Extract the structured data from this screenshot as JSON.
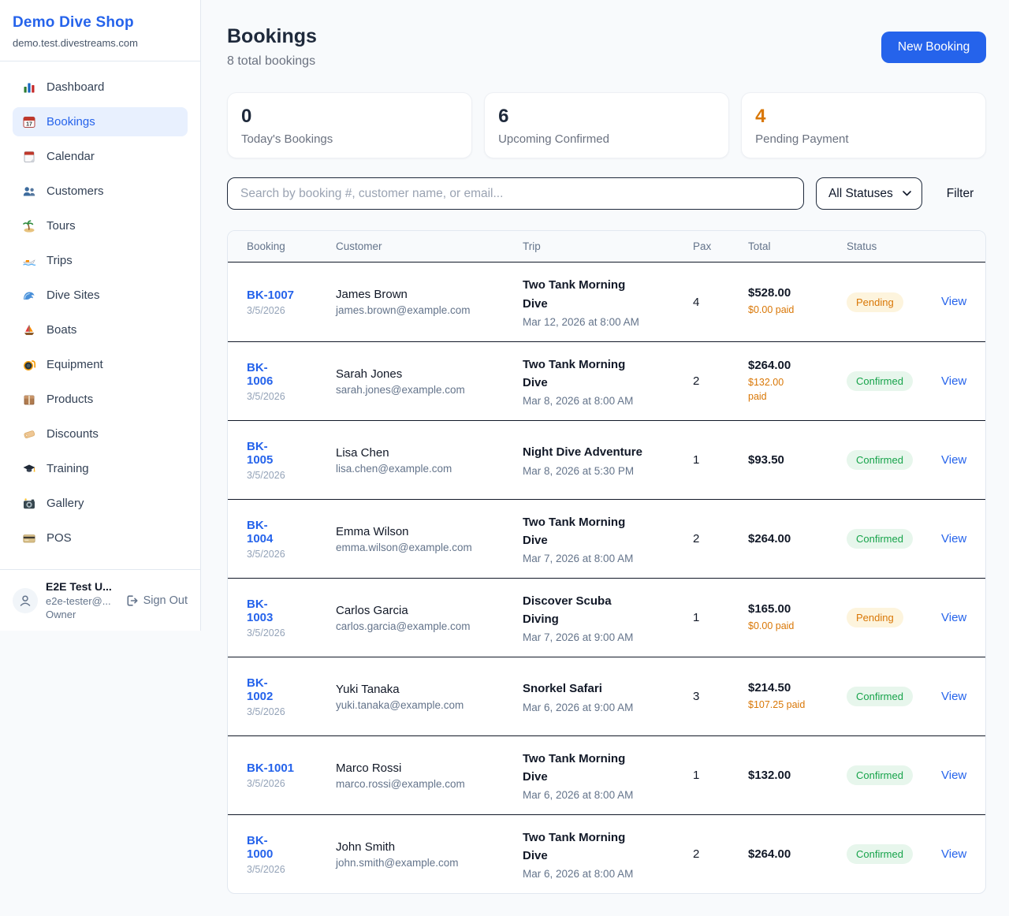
{
  "colors": {
    "accent_blue": "#2563eb",
    "orange": "#d97706",
    "green": "#16a34a",
    "pending_badge_bg": "#fdf4dd",
    "confirmed_badge_bg": "#e7f6ec",
    "page_bg": "#f8fafc"
  },
  "sidebar": {
    "title": "Demo Dive Shop",
    "subdomain": "demo.test.divestreams.com",
    "items": [
      {
        "label": "Dashboard",
        "icon": "bar-chart",
        "active": false
      },
      {
        "label": "Bookings",
        "icon": "calendar",
        "active": true
      },
      {
        "label": "Calendar",
        "icon": "tear-calendar",
        "active": false
      },
      {
        "label": "Customers",
        "icon": "people",
        "active": false
      },
      {
        "label": "Tours",
        "icon": "island",
        "active": false
      },
      {
        "label": "Trips",
        "icon": "speedboat",
        "active": false
      },
      {
        "label": "Dive Sites",
        "icon": "wave",
        "active": false
      },
      {
        "label": "Boats",
        "icon": "sailboat",
        "active": false
      },
      {
        "label": "Equipment",
        "icon": "dive-mask",
        "active": false
      },
      {
        "label": "Products",
        "icon": "package",
        "active": false
      },
      {
        "label": "Discounts",
        "icon": "tag",
        "active": false
      },
      {
        "label": "Training",
        "icon": "grad-cap",
        "active": false
      },
      {
        "label": "Gallery",
        "icon": "camera",
        "active": false
      },
      {
        "label": "POS",
        "icon": "credit-card",
        "active": false
      }
    ],
    "user": {
      "name": "E2E Test U...",
      "email": "e2e-tester@...",
      "role": "Owner",
      "sign_out_label": "Sign Out"
    }
  },
  "header": {
    "title": "Bookings",
    "subtitle": "8 total bookings",
    "new_booking_label": "New Booking"
  },
  "stats": [
    {
      "value": "0",
      "label": "Today's Bookings",
      "accent": ""
    },
    {
      "value": "6",
      "label": "Upcoming Confirmed",
      "accent": ""
    },
    {
      "value": "4",
      "label": "Pending Payment",
      "accent": "orange"
    }
  ],
  "filters": {
    "search_placeholder": "Search by booking #, customer name, or email...",
    "status_selected": "All Statuses",
    "filter_label": "Filter"
  },
  "table": {
    "columns": [
      "Booking",
      "Customer",
      "Trip",
      "Pax",
      "Total",
      "Status"
    ],
    "view_label": "View",
    "rows": [
      {
        "id": "BK-1007",
        "date": "3/5/2026",
        "name": "James Brown",
        "email": "james.brown@example.com",
        "trip": "Two Tank Morning\nDive",
        "trip_time": "Mar 12, 2026 at 8:00 AM",
        "pax": "4",
        "total": "$528.00",
        "paid": "$0.00 paid",
        "status": "Pending"
      },
      {
        "id": "BK-\n1006",
        "date": "3/5/2026",
        "name": "Sarah Jones",
        "email": "sarah.jones@example.com",
        "trip": "Two Tank Morning\nDive",
        "trip_time": "Mar 8, 2026 at 8:00 AM",
        "pax": "2",
        "total": "$264.00",
        "paid": "$132.00\npaid",
        "status": "Confirmed"
      },
      {
        "id": "BK-\n1005",
        "date": "3/5/2026",
        "name": "Lisa Chen",
        "email": "lisa.chen@example.com",
        "trip": "Night Dive Adventure",
        "trip_time": "Mar 8, 2026 at 5:30 PM",
        "pax": "1",
        "total": "$93.50",
        "paid": "",
        "status": "Confirmed"
      },
      {
        "id": "BK-\n1004",
        "date": "3/5/2026",
        "name": "Emma Wilson",
        "email": "emma.wilson@example.com",
        "trip": "Two Tank Morning\nDive",
        "trip_time": "Mar 7, 2026 at 8:00 AM",
        "pax": "2",
        "total": "$264.00",
        "paid": "",
        "status": "Confirmed"
      },
      {
        "id": "BK-\n1003",
        "date": "3/5/2026",
        "name": "Carlos Garcia",
        "email": "carlos.garcia@example.com",
        "trip": "Discover Scuba\nDiving",
        "trip_time": "Mar 7, 2026 at 9:00 AM",
        "pax": "1",
        "total": "$165.00",
        "paid": "$0.00 paid",
        "status": "Pending"
      },
      {
        "id": "BK-\n1002",
        "date": "3/5/2026",
        "name": "Yuki Tanaka",
        "email": "yuki.tanaka@example.com",
        "trip": "Snorkel Safari",
        "trip_time": "Mar 6, 2026 at 9:00 AM",
        "pax": "3",
        "total": "$214.50",
        "paid": "$107.25 paid",
        "status": "Confirmed"
      },
      {
        "id": "BK-1001",
        "date": "3/5/2026",
        "name": "Marco Rossi",
        "email": "marco.rossi@example.com",
        "trip": "Two Tank Morning\nDive",
        "trip_time": "Mar 6, 2026 at 8:00 AM",
        "pax": "1",
        "total": "$132.00",
        "paid": "",
        "status": "Confirmed"
      },
      {
        "id": "BK-\n1000",
        "date": "3/5/2026",
        "name": "John Smith",
        "email": "john.smith@example.com",
        "trip": "Two Tank Morning\nDive",
        "trip_time": "Mar 6, 2026 at 8:00 AM",
        "pax": "2",
        "total": "$264.00",
        "paid": "",
        "status": "Confirmed"
      }
    ]
  }
}
